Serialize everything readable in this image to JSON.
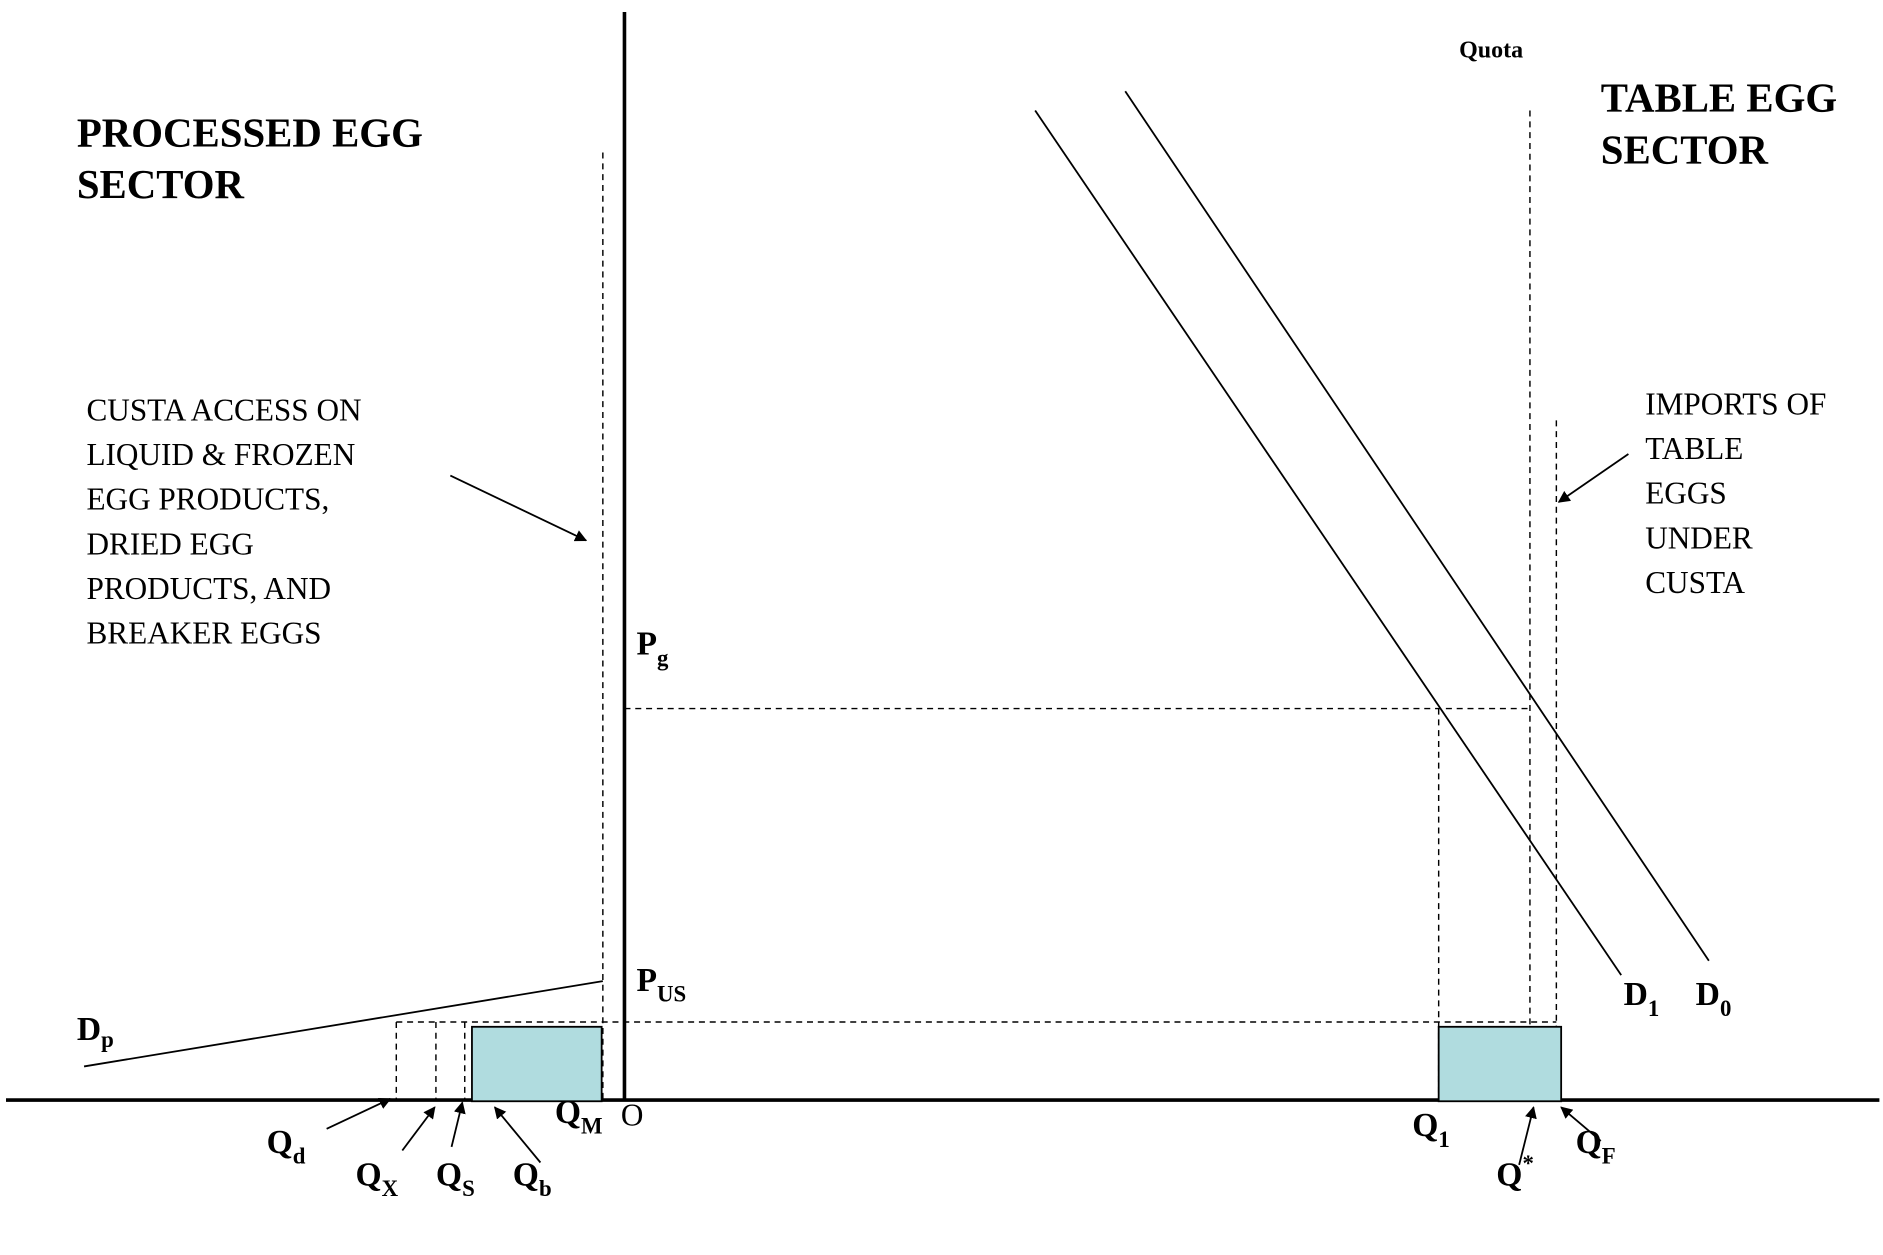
{
  "sectors": {
    "left": [
      "PROCESSED EGG",
      "SECTOR"
    ],
    "right": [
      "TABLE EGG",
      "SECTOR"
    ]
  },
  "quota": "Quota",
  "annotations": {
    "left": [
      "CUSTA ACCESS ON",
      "LIQUID & FROZEN",
      "EGG PRODUCTS,",
      "DRIED EGG",
      "PRODUCTS, AND",
      "BREAKER EGGS"
    ],
    "right": [
      "IMPORTS OF",
      "TABLE",
      "EGGS",
      "UNDER",
      "CUSTA"
    ]
  },
  "origin": "O",
  "labels": [
    {
      "main": "P",
      "sub": "g"
    },
    {
      "main": "P",
      "sub": "US"
    },
    {
      "main": "D",
      "sub": "1"
    },
    {
      "main": "D",
      "sub": "0"
    },
    {
      "main": "D",
      "sub": "p"
    },
    {
      "main": "Q",
      "sub": "M"
    },
    {
      "main": "Q",
      "sub": "d"
    },
    {
      "main": "Q",
      "sub": "X"
    },
    {
      "main": "Q",
      "sub": "S"
    },
    {
      "main": "Q",
      "sub": "b"
    },
    {
      "main": "Q",
      "sub": "1"
    },
    {
      "main": "Q",
      "sup": "*"
    },
    {
      "main": "Q",
      "sub": "F"
    }
  ]
}
